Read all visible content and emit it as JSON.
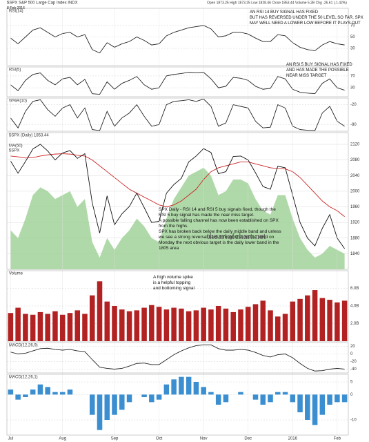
{
  "header": {
    "symbol": "$SPX S&P 500 Large Cap Index INDX",
    "date": "8-Feb-2016",
    "quote": "Open 1873.25 High 1873.25 Low 1828.46 Close 1853.44 Volume 5.2B Chg -26.61 (-1.42%)"
  },
  "chart_data": [
    {
      "type": "line",
      "title": "RSI(14)",
      "ylim": [
        0,
        100
      ],
      "yticks": [
        30,
        50,
        70
      ],
      "series": [
        {
          "color": "#222222",
          "values": [
            48,
            38,
            50,
            62,
            66,
            58,
            50,
            56,
            58,
            50,
            54,
            28,
            22,
            40,
            32,
            38,
            42,
            50,
            44,
            36,
            38,
            52,
            58,
            62,
            66,
            68,
            70,
            64,
            50,
            52,
            58,
            58,
            55,
            48,
            42,
            42,
            54,
            52,
            40,
            32,
            28,
            26,
            36,
            42,
            38,
            36
          ]
        }
      ],
      "annotations": [
        "AN RSI 14 BUY SIGNAL HAS FIXED",
        "BUT HAS REVERSED UNDER THE 50 LEVEL SO FAR. SPX",
        "MAY WELL NEED A LOWER LOW BEFORE IT PLAYS OUT"
      ]
    },
    {
      "type": "line",
      "title": "RSI(5)",
      "ylim": [
        0,
        100
      ],
      "yticks": [
        30,
        70
      ],
      "series": [
        {
          "color": "#222222",
          "values": [
            40,
            20,
            55,
            75,
            80,
            55,
            40,
            60,
            65,
            40,
            58,
            10,
            8,
            50,
            25,
            45,
            55,
            68,
            40,
            25,
            30,
            70,
            75,
            78,
            82,
            80,
            82,
            60,
            30,
            35,
            65,
            62,
            55,
            35,
            25,
            28,
            68,
            60,
            25,
            15,
            12,
            10,
            45,
            60,
            30,
            22
          ]
        }
      ],
      "annotations": [
        "AN RSI 5 BUY SIGNAL HAS FIXED",
        "AND HAS MADE THE POSSIBLE",
        "NEAR MISS TARGET"
      ]
    },
    {
      "type": "line",
      "title": "W%R(10)",
      "ylim": [
        -100,
        0
      ],
      "yticks": [
        -80,
        -20
      ],
      "series": [
        {
          "color": "#222222",
          "values": [
            -60,
            -90,
            -40,
            -10,
            -5,
            -35,
            -55,
            -30,
            -20,
            -60,
            -30,
            -95,
            -98,
            -40,
            -85,
            -60,
            -45,
            -20,
            -55,
            -85,
            -80,
            -20,
            -10,
            -8,
            -5,
            -10,
            -3,
            -25,
            -85,
            -75,
            -20,
            -25,
            -30,
            -70,
            -90,
            -88,
            -20,
            -30,
            -85,
            -95,
            -97,
            -98,
            -45,
            -25,
            -70,
            -85
          ]
        }
      ]
    },
    {
      "type": "line",
      "title": "$SPX (Daily) 1853.44",
      "ylim": [
        1800,
        2150
      ],
      "yticks": [
        1840,
        1880,
        1920,
        1960,
        2000,
        2040,
        2080,
        2120
      ],
      "grid": true,
      "categories": [
        "Jul",
        null,
        null,
        null,
        null,
        null,
        null,
        "Aug",
        null,
        null,
        null,
        null,
        null,
        null,
        "Sep",
        null,
        null,
        null,
        null,
        null,
        "Oct",
        null,
        null,
        null,
        null,
        null,
        "Nov",
        null,
        null,
        null,
        null,
        null,
        "Dec",
        null,
        null,
        null,
        null,
        null,
        "2016",
        null,
        null,
        null,
        null,
        null,
        "Feb",
        null
      ],
      "series": [
        {
          "color": "#9ccf94",
          "area": true,
          "values": [
            1900,
            1880,
            1930,
            1990,
            2010,
            2000,
            1980,
            1990,
            2000,
            1960,
            1980,
            1870,
            1830,
            1880,
            1850,
            1880,
            1900,
            1930,
            1910,
            1880,
            1870,
            1930,
            1980,
            2010,
            2040,
            2050,
            2060,
            2040,
            1990,
            2000,
            2030,
            2030,
            2020,
            1980,
            1950,
            1940,
            1990,
            1990,
            1930,
            1880,
            1850,
            1830,
            1840,
            1860,
            1850,
            1840
          ]
        },
        {
          "name": "MA(50)",
          "color": "#cc2222",
          "values": [
            2090,
            2088,
            2085,
            2086,
            2090,
            2093,
            2095,
            2096,
            2095,
            2092,
            2090,
            2080,
            2065,
            2050,
            2035,
            2020,
            2005,
            1995,
            1985,
            1975,
            1965,
            1960,
            1965,
            1975,
            1990,
            2005,
            2030,
            2050,
            2060,
            2065,
            2070,
            2075,
            2075,
            2070,
            2065,
            2060,
            2058,
            2057,
            2050,
            2035,
            2015,
            1995,
            1975,
            1960,
            1950,
            1935
          ]
        },
        {
          "name": "$SPX",
          "color": "#111111",
          "values": [
            2077,
            2046,
            2076,
            2108,
            2120,
            2103,
            2080,
            2098,
            2104,
            2084,
            2096,
            1970,
            1893,
            1988,
            1914,
            1942,
            1961,
            1995,
            1958,
            1920,
            1923,
            1995,
            2017,
            2033,
            2075,
            2090,
            2109,
            2099,
            2045,
            2050,
            2089,
            2090,
            2080,
            2047,
            2012,
            2005,
            2064,
            2060,
            1990,
            1920,
            1880,
            1860,
            1905,
            1940,
            1880,
            1853
          ]
        }
      ],
      "annotations": [
        "SPX Daily - RSI 14 and RSI 5 buy signals fixed, though the RSI 5 buy signal has made the near miss target.",
        "A possible falling channel has now been established on SPX from the highs.",
        "SPX has broken back below the daily middle band and unless we see a strong reversal back through the middle band on Monday the next obvious target is the daily lower band in the 1805 area",
        "theartofchart.net"
      ]
    },
    {
      "type": "bar",
      "title": "Volume",
      "ylim": [
        0,
        8
      ],
      "yticks": [
        {
          "value": 2,
          "label": "2.0B"
        },
        {
          "value": 4,
          "label": "4.0B"
        },
        {
          "value": 6,
          "label": "6.0B"
        }
      ],
      "series": [
        {
          "color": "#b22222",
          "values": [
            3.2,
            3.8,
            3.1,
            3.0,
            3.3,
            3.1,
            3.4,
            3.0,
            3.2,
            3.5,
            3.1,
            5.2,
            6.8,
            4.5,
            4.0,
            3.6,
            3.4,
            3.5,
            3.8,
            4.1,
            3.9,
            3.6,
            3.8,
            3.7,
            3.4,
            3.5,
            3.8,
            3.6,
            4.0,
            3.7,
            3.3,
            3.6,
            3.9,
            4.2,
            4.6,
            3.5,
            2.8,
            3.1,
            4.5,
            4.8,
            5.2,
            5.8,
            4.9,
            4.7,
            4.4,
            4.6
          ]
        }
      ],
      "annotations": [
        "A high volume spike",
        "is a helpful topping",
        "and bottoming signal"
      ]
    },
    {
      "type": "line",
      "title": "MACD(12,26,9)",
      "ylim": [
        -50,
        30
      ],
      "yticks": [
        -40,
        -20,
        0,
        20
      ],
      "series": [
        {
          "color": "#222222",
          "values": [
            5,
            0,
            2,
            8,
            14,
            15,
            12,
            10,
            12,
            8,
            6,
            -15,
            -35,
            -38,
            -40,
            -38,
            -32,
            -25,
            -24,
            -28,
            -28,
            -15,
            -2,
            8,
            16,
            22,
            24,
            24,
            14,
            10,
            10,
            12,
            10,
            4,
            -4,
            -8,
            -2,
            0,
            -10,
            -25,
            -38,
            -45,
            -44,
            -40,
            -38,
            -40
          ]
        }
      ]
    },
    {
      "type": "bar",
      "title": "MACD(12,26,1)",
      "ylim": [
        -16,
        8
      ],
      "yticks": [
        -10,
        0,
        5
      ],
      "series": [
        {
          "color": "#3b8fd1",
          "values": [
            2,
            -2,
            -1,
            2,
            4,
            3,
            1,
            1,
            2,
            0,
            0,
            -8,
            -14,
            -10,
            -8,
            -6,
            -3,
            0,
            -1,
            -3,
            -2,
            4,
            6,
            7,
            7,
            5,
            3,
            1,
            -4,
            -3,
            0,
            1,
            0,
            -2,
            -4,
            -3,
            1,
            1,
            -3,
            -7,
            -10,
            -12,
            -8,
            -4,
            -3,
            -3
          ]
        }
      ]
    }
  ]
}
